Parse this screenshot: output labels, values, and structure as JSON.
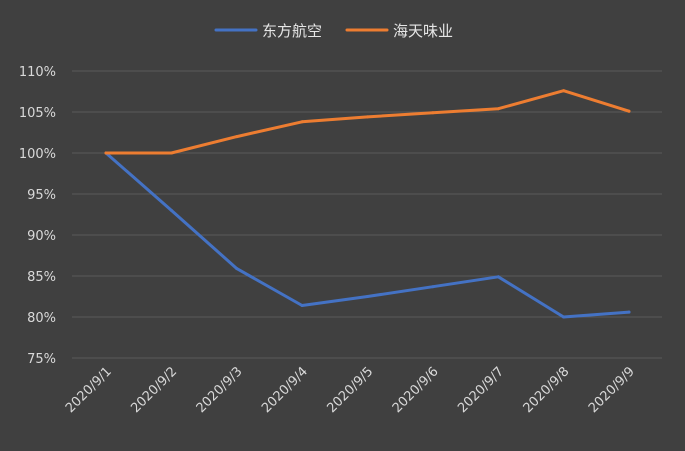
{
  "chart_data": {
    "type": "line",
    "title": "",
    "xlabel": "",
    "ylabel": "",
    "categories": [
      "2020/9/1",
      "2020/9/2",
      "2020/9/3",
      "2020/9/4",
      "2020/9/5",
      "2020/9/6",
      "2020/9/7",
      "2020/9/8",
      "2020/9/9"
    ],
    "y_ticks": [
      "75%",
      "80%",
      "85%",
      "90%",
      "95%",
      "100%",
      "105%",
      "110%"
    ],
    "ylim": [
      75,
      110
    ],
    "y_unit": "%",
    "grid": true,
    "legend_position": "top",
    "series": [
      {
        "name": "东方航空",
        "color": "#4472c4",
        "values": [
          100,
          93,
          85.9,
          81.4,
          82.5,
          83.7,
          84.9,
          80.0,
          80.6
        ]
      },
      {
        "name": "海天味业",
        "color": "#ed7d31",
        "values": [
          100,
          100,
          102,
          103.8,
          104.4,
          104.9,
          105.4,
          107.6,
          105.1
        ]
      }
    ]
  }
}
